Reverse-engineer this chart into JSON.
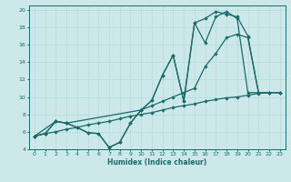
{
  "xlabel": "Humidex (Indice chaleur)",
  "background_color": "#cce8e8",
  "grid_color": "#e8f4f4",
  "line_color": "#1a6b6b",
  "xlim": [
    -0.5,
    23.5
  ],
  "ylim": [
    4,
    20.5
  ],
  "xticks": [
    0,
    1,
    2,
    3,
    4,
    5,
    6,
    7,
    8,
    9,
    10,
    11,
    12,
    13,
    14,
    15,
    16,
    17,
    18,
    19,
    20,
    21,
    22,
    23
  ],
  "yticks": [
    4,
    6,
    8,
    10,
    12,
    14,
    16,
    18,
    20
  ],
  "series1_x": [
    0,
    1,
    2,
    3,
    4,
    5,
    6,
    7,
    8,
    9,
    10,
    11,
    12,
    13,
    14,
    15,
    16,
    17,
    18,
    19,
    20,
    21
  ],
  "series1_y": [
    5.5,
    5.8,
    7.2,
    7.0,
    6.5,
    5.9,
    5.8,
    4.2,
    4.8,
    7.0,
    8.5,
    9.6,
    12.5,
    14.8,
    9.5,
    18.5,
    16.2,
    19.2,
    19.8,
    19.0,
    10.5,
    10.5
  ],
  "series2_x": [
    0,
    1,
    2,
    3,
    4,
    5,
    6,
    7,
    8,
    9,
    10,
    11,
    12,
    13,
    14,
    15,
    16,
    17,
    18,
    19,
    20,
    21,
    22,
    23
  ],
  "series2_y": [
    5.5,
    5.8,
    7.2,
    7.0,
    6.5,
    5.9,
    5.8,
    4.2,
    4.8,
    7.0,
    8.5,
    9.6,
    12.5,
    14.8,
    9.5,
    18.5,
    19.0,
    19.8,
    19.5,
    19.2,
    17.0,
    10.5,
    10.5,
    10.5
  ],
  "series3_x": [
    0,
    2,
    3,
    10,
    11,
    12,
    13,
    14,
    15,
    16,
    17,
    18,
    19,
    20,
    21,
    22,
    23
  ],
  "series3_y": [
    5.5,
    7.2,
    7.0,
    8.5,
    9.0,
    9.5,
    10.0,
    10.5,
    11.0,
    13.5,
    15.0,
    16.8,
    17.2,
    16.8,
    10.5,
    10.5,
    10.5
  ],
  "series4_x": [
    0,
    1,
    2,
    3,
    4,
    5,
    6,
    7,
    8,
    9,
    10,
    11,
    12,
    13,
    14,
    15,
    16,
    17,
    18,
    19,
    20,
    21,
    22,
    23
  ],
  "series4_y": [
    5.5,
    5.8,
    6.0,
    6.3,
    6.5,
    6.8,
    7.0,
    7.2,
    7.5,
    7.8,
    8.0,
    8.2,
    8.5,
    8.8,
    9.0,
    9.2,
    9.5,
    9.7,
    9.9,
    10.0,
    10.2,
    10.4,
    10.5,
    10.5
  ]
}
